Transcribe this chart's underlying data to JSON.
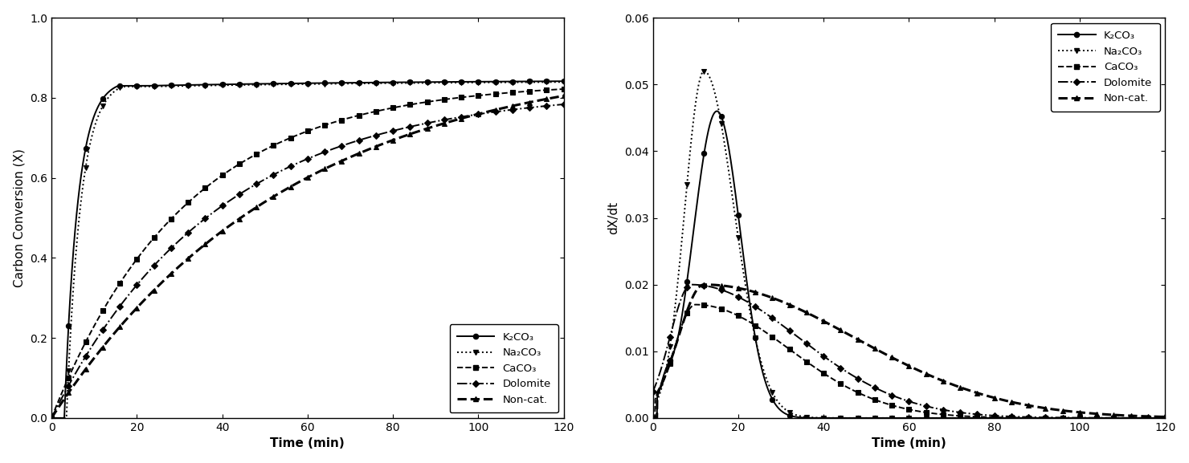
{
  "left_plot": {
    "xlabel": "Time (min)",
    "ylabel": "Carbon Conversion (X)",
    "xlim": [
      0,
      120
    ],
    "ylim": [
      0,
      1.0
    ],
    "xticks": [
      0,
      20,
      40,
      60,
      80,
      100,
      120
    ],
    "yticks": [
      0.0,
      0.2,
      0.4,
      0.6,
      0.8,
      1.0
    ]
  },
  "right_plot": {
    "xlabel": "Time (min)",
    "ylabel": "dX/dt",
    "xlim": [
      0,
      120
    ],
    "ylim": [
      0,
      0.06
    ],
    "xticks": [
      0,
      20,
      40,
      60,
      80,
      100,
      120
    ],
    "yticks": [
      0.0,
      0.01,
      0.02,
      0.03,
      0.04,
      0.05,
      0.06
    ]
  },
  "legend_labels": [
    "K₂CO₃",
    "Na₂CO₃",
    "CaCO₃",
    "Dolomite",
    "Non-cat."
  ],
  "line_styles_left": [
    "-",
    ":",
    "--",
    "-.",
    "--"
  ],
  "line_styles_right": [
    "-",
    ":",
    "--",
    "-.",
    "--"
  ],
  "markers": [
    "o",
    "v",
    "s",
    "D",
    "^"
  ]
}
